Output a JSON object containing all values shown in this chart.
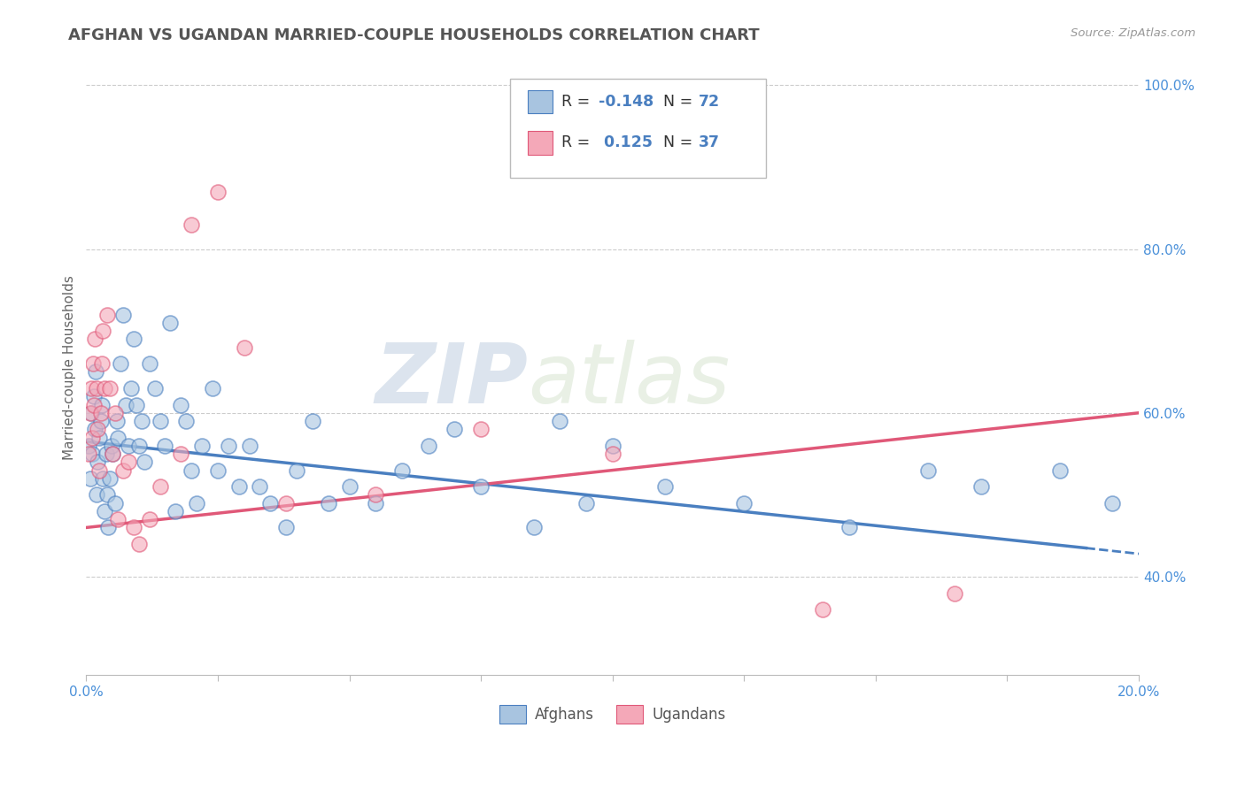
{
  "title": "AFGHAN VS UGANDAN MARRIED-COUPLE HOUSEHOLDS CORRELATION CHART",
  "source": "Source: ZipAtlas.com",
  "xlabel": "",
  "ylabel": "Married-couple Households",
  "xlim": [
    0.0,
    20.0
  ],
  "ylim": [
    28.0,
    103.0
  ],
  "xticks": [
    0.0,
    2.5,
    5.0,
    7.5,
    10.0,
    12.5,
    15.0,
    17.5,
    20.0
  ],
  "yticks": [
    40.0,
    60.0,
    80.0,
    100.0
  ],
  "ytick_labels": [
    "40.0%",
    "60.0%",
    "80.0%",
    "100.0%"
  ],
  "xtick_labels": [
    "0.0%",
    "",
    "",
    "",
    "",
    "",
    "",
    "",
    "20.0%"
  ],
  "afghan_color": "#a8c4e0",
  "ugandan_color": "#f4a8b8",
  "afghan_line_color": "#4a7fc0",
  "ugandan_line_color": "#e05878",
  "watermark_zip": "ZIP",
  "watermark_atlas": "atlas",
  "background_color": "#ffffff",
  "grid_color": "#cccccc",
  "title_color": "#555555",
  "legend_color": "#4a7fc0",
  "afghans_x": [
    0.05,
    0.08,
    0.1,
    0.12,
    0.14,
    0.16,
    0.18,
    0.2,
    0.22,
    0.25,
    0.28,
    0.3,
    0.32,
    0.35,
    0.38,
    0.4,
    0.42,
    0.45,
    0.48,
    0.5,
    0.55,
    0.58,
    0.6,
    0.65,
    0.7,
    0.75,
    0.8,
    0.85,
    0.9,
    0.95,
    1.0,
    1.05,
    1.1,
    1.2,
    1.3,
    1.4,
    1.5,
    1.6,
    1.7,
    1.8,
    1.9,
    2.0,
    2.1,
    2.2,
    2.4,
    2.5,
    2.7,
    2.9,
    3.1,
    3.3,
    3.5,
    3.8,
    4.0,
    4.3,
    4.6,
    5.0,
    5.5,
    6.0,
    6.5,
    7.0,
    7.5,
    8.5,
    9.5,
    11.0,
    14.5,
    18.5,
    19.5,
    9.0,
    10.0,
    12.5,
    16.0,
    17.0
  ],
  "afghans_y": [
    56,
    52,
    60,
    55,
    62,
    58,
    65,
    50,
    54,
    57,
    59,
    61,
    52,
    48,
    55,
    50,
    46,
    52,
    56,
    55,
    49,
    59,
    57,
    66,
    72,
    61,
    56,
    63,
    69,
    61,
    56,
    59,
    54,
    66,
    63,
    59,
    56,
    71,
    48,
    61,
    59,
    53,
    49,
    56,
    63,
    53,
    56,
    51,
    56,
    51,
    49,
    46,
    53,
    59,
    49,
    51,
    49,
    53,
    56,
    58,
    51,
    46,
    49,
    51,
    46,
    53,
    49,
    59,
    56,
    49,
    53,
    51
  ],
  "ugandans_x": [
    0.04,
    0.07,
    0.09,
    0.11,
    0.13,
    0.15,
    0.17,
    0.2,
    0.22,
    0.25,
    0.28,
    0.3,
    0.32,
    0.35,
    0.4,
    0.45,
    0.5,
    0.55,
    0.6,
    0.7,
    0.8,
    0.9,
    1.0,
    1.2,
    1.4,
    1.8,
    2.0,
    2.5,
    3.0,
    3.8,
    5.5,
    7.5,
    10.0,
    14.0,
    16.5
  ],
  "ugandans_y": [
    55,
    60,
    63,
    57,
    66,
    61,
    69,
    63,
    58,
    53,
    60,
    66,
    70,
    63,
    72,
    63,
    55,
    60,
    47,
    53,
    54,
    46,
    44,
    47,
    51,
    55,
    83,
    87,
    68,
    49,
    50,
    58,
    55,
    36,
    38
  ],
  "afghan_line_x0": 0.0,
  "afghan_line_y0": 56.5,
  "afghan_line_x1": 19.0,
  "afghan_line_y1": 43.5,
  "afghan_dash_x0": 19.0,
  "afghan_dash_y0": 43.5,
  "afghan_dash_x1": 20.0,
  "afghan_dash_y1": 42.8,
  "ugandan_line_x0": 0.0,
  "ugandan_line_y0": 46.0,
  "ugandan_line_x1": 20.0,
  "ugandan_line_y1": 60.0
}
